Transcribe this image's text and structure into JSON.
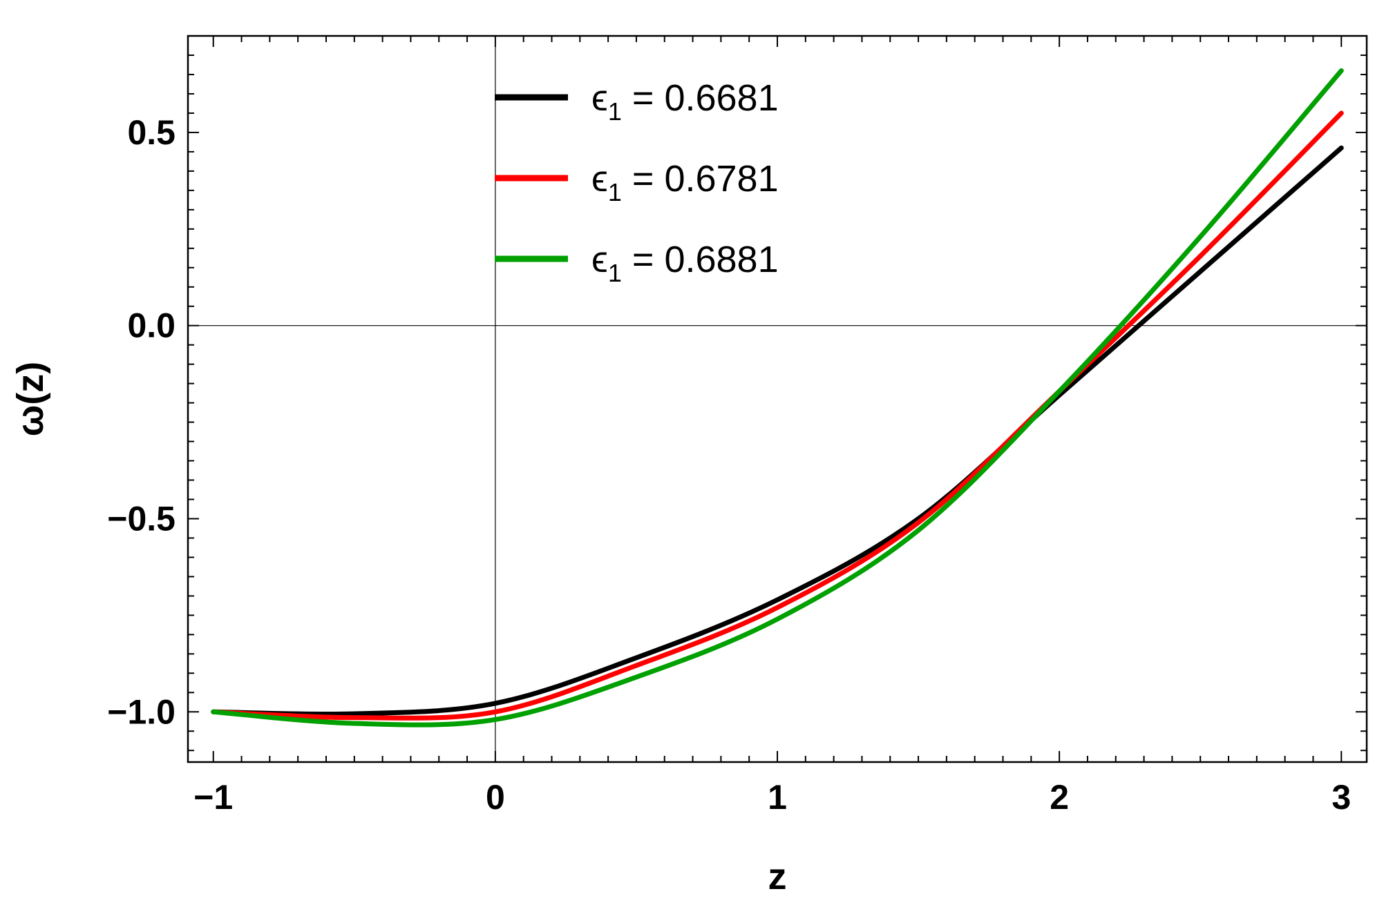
{
  "chart_data": {
    "type": "line",
    "xlabel": "z",
    "ylabel": "ω(z)",
    "xlim": [
      -1.09,
      3.09
    ],
    "ylim": [
      -1.13,
      0.75
    ],
    "x_ticks": [
      -1,
      0,
      1,
      2,
      3
    ],
    "x_tick_labels": [
      "−1",
      "0",
      "1",
      "2",
      "3"
    ],
    "y_ticks": [
      -1.0,
      -0.5,
      0.0,
      0.5
    ],
    "y_tick_labels": [
      "−1.0",
      "−0.5",
      "0.0",
      "0.5"
    ],
    "grid": false,
    "axes_lines_at_zero": true,
    "legend_position": "top-center",
    "series": [
      {
        "legend_symbol": "ϵ",
        "legend_subscript": "1",
        "legend_value": "= 0.6681",
        "color": "#000000",
        "x": [
          -1.0,
          -0.5,
          0.0,
          0.5,
          1.0,
          1.5,
          2.0,
          2.5,
          3.0
        ],
        "y": [
          -1.0,
          -1.005,
          -0.978,
          -0.86,
          -0.71,
          -0.5,
          -0.18,
          0.14,
          0.46
        ]
      },
      {
        "legend_symbol": "ϵ",
        "legend_subscript": "1",
        "legend_value": "= 0.6781",
        "color": "#ff0000",
        "x": [
          -1.0,
          -0.5,
          0.0,
          0.5,
          1.0,
          1.5,
          2.0,
          2.5,
          3.0
        ],
        "y": [
          -1.0,
          -1.015,
          -1.0,
          -0.88,
          -0.73,
          -0.51,
          -0.17,
          0.18,
          0.55
        ]
      },
      {
        "legend_symbol": "ϵ",
        "legend_subscript": "1",
        "legend_value": "= 0.6881",
        "color": "#00a000",
        "x": [
          -1.0,
          -0.5,
          0.0,
          0.5,
          1.0,
          1.5,
          2.0,
          2.5,
          3.0
        ],
        "y": [
          -1.0,
          -1.03,
          -1.02,
          -0.91,
          -0.76,
          -0.53,
          -0.17,
          0.23,
          0.66
        ]
      }
    ]
  }
}
